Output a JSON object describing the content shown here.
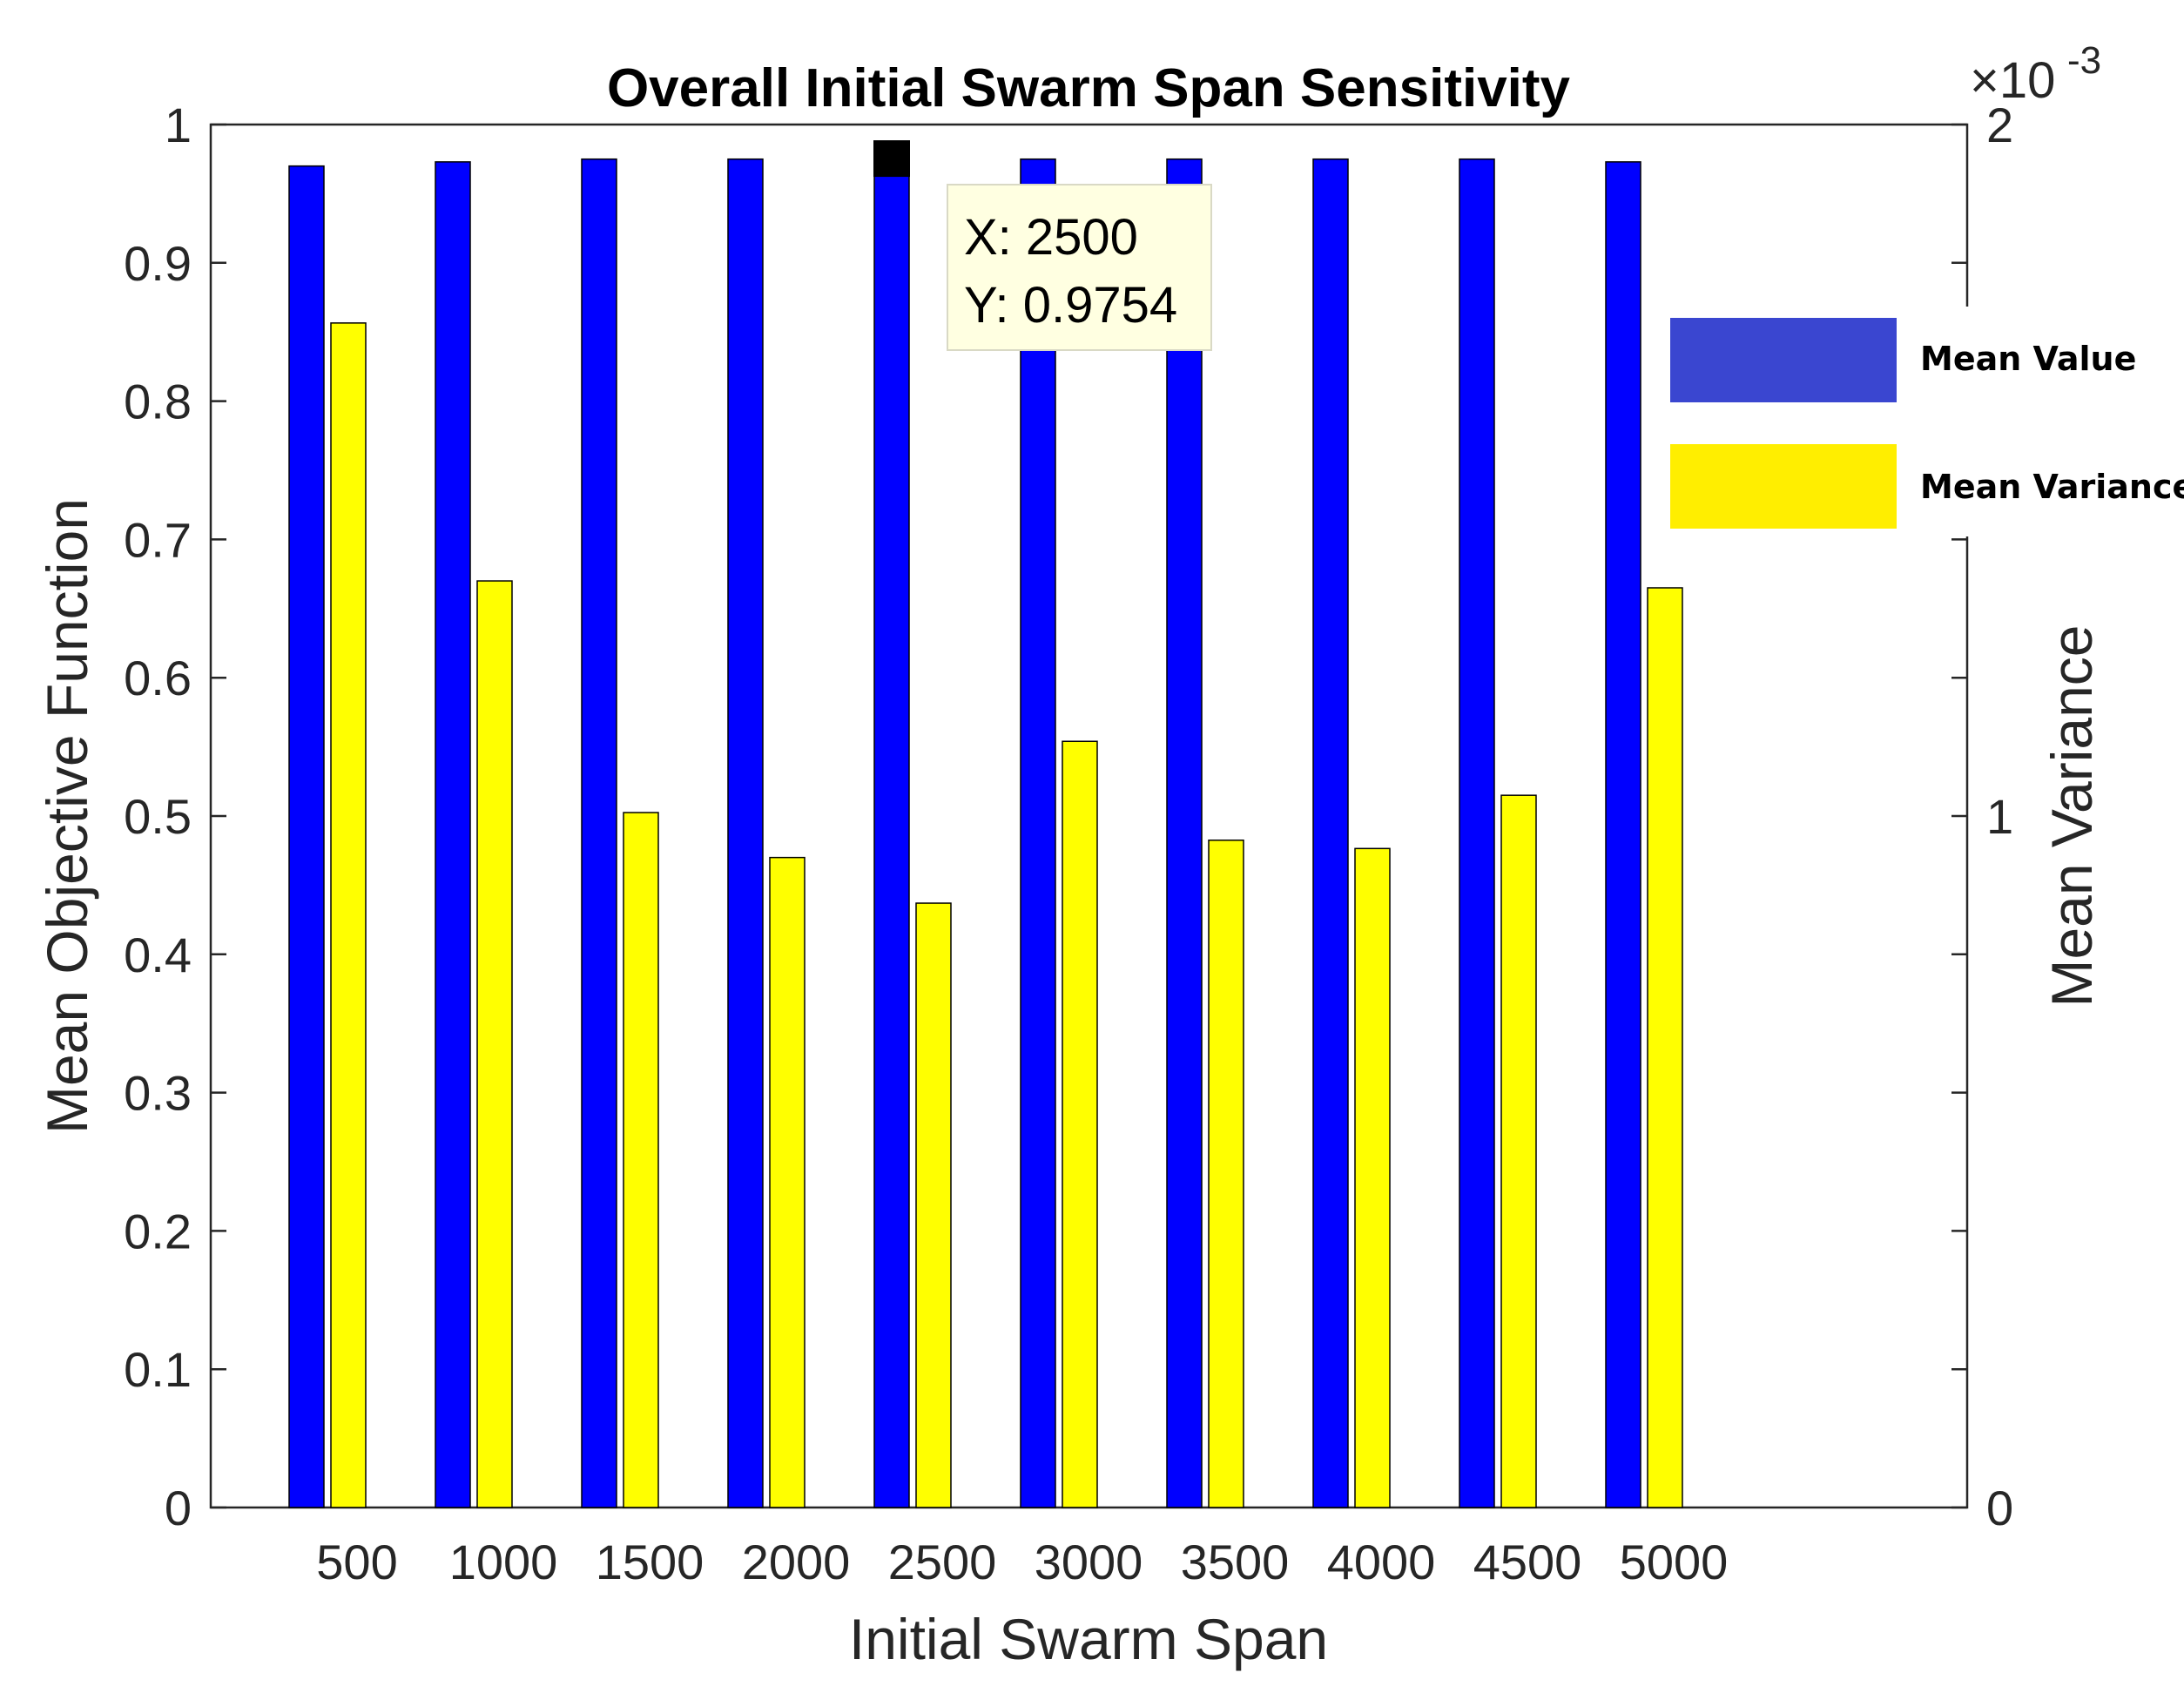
{
  "chart_data": {
    "type": "bar",
    "title": "Overall Initial Swarm Span Sensitivity",
    "xlabel": "Initial Swarm Span",
    "ylabel": "Mean Objective Function",
    "y2label": "Mean Variance",
    "categories": [
      "500",
      "1000",
      "1500",
      "2000",
      "2500",
      "3000",
      "3500",
      "4000",
      "4500",
      "5000"
    ],
    "ylim": [
      0,
      1
    ],
    "y2lim": [
      0,
      2
    ],
    "y2_exponent_label": "×10",
    "y2_exponent_power": "-3",
    "y_ticks": [
      "0",
      "0.1",
      "0.2",
      "0.3",
      "0.4",
      "0.5",
      "0.6",
      "0.7",
      "0.8",
      "0.9",
      "1"
    ],
    "y2_ticks": [
      "0",
      "1",
      "2"
    ],
    "series": [
      {
        "name": "Mean Value",
        "axis": "left",
        "color": "#0000ff",
        "values": [
          0.97,
          0.973,
          0.975,
          0.975,
          0.9754,
          0.975,
          0.975,
          0.975,
          0.975,
          0.973
        ]
      },
      {
        "name": "Mean Variance",
        "axis": "right",
        "color": "#ffff00",
        "values": [
          1.713,
          1.34,
          1.005,
          0.94,
          0.874,
          1.108,
          0.965,
          0.953,
          1.03,
          1.33
        ]
      }
    ],
    "legend": {
      "position": "right",
      "items": [
        {
          "label": "Mean Value",
          "color": "#3a46d0"
        },
        {
          "label": "Mean Variance",
          "color": "#ffee00"
        }
      ]
    },
    "datatip": {
      "category": "2500",
      "x_line": "X: 2500",
      "y_line": "Y: 0.9754"
    }
  }
}
